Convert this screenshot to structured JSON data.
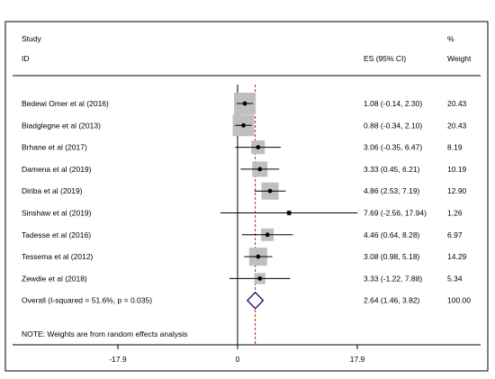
{
  "chart_data": {
    "type": "forest",
    "header": {
      "study_line1": "Study",
      "study_line2": "ID",
      "es_label": "ES (95% CI)",
      "weight_line1": "%",
      "weight_line2": "Weight"
    },
    "xlim": [
      -17.9,
      17.9
    ],
    "x_ticks": [
      "-17.9",
      "0",
      "17.9"
    ],
    "studies": [
      {
        "name": "Bedewi Omer et al (2016)",
        "es": 1.08,
        "lo": -0.14,
        "hi": 2.3,
        "ci_text": "1.08 (-0.14, 2.30)",
        "weight": 20.43,
        "weight_text": "20.43"
      },
      {
        "name": "Biadglegne et al (2013)",
        "es": 0.88,
        "lo": -0.34,
        "hi": 2.1,
        "ci_text": "0.88 (-0.34, 2.10)",
        "weight": 20.43,
        "weight_text": "20.43"
      },
      {
        "name": "Brhane et al (2017)",
        "es": 3.06,
        "lo": -0.35,
        "hi": 6.47,
        "ci_text": "3.06 (-0.35, 6.47)",
        "weight": 8.19,
        "weight_text": "8.19"
      },
      {
        "name": "Damena et al (2019)",
        "es": 3.33,
        "lo": 0.45,
        "hi": 6.21,
        "ci_text": "3.33 (0.45, 6.21)",
        "weight": 10.19,
        "weight_text": "10.19"
      },
      {
        "name": "Diriba et al (2019)",
        "es": 4.86,
        "lo": 2.53,
        "hi": 7.19,
        "ci_text": "4.86 (2.53, 7.19)",
        "weight": 12.9,
        "weight_text": "12.90"
      },
      {
        "name": "Sinshaw et al (2019)",
        "es": 7.69,
        "lo": -2.56,
        "hi": 17.94,
        "ci_text": "7.69 (-2.56, 17.94)",
        "weight": 1.26,
        "weight_text": "1.26"
      },
      {
        "name": "Tadesse et al (2016)",
        "es": 4.46,
        "lo": 0.64,
        "hi": 8.28,
        "ci_text": "4.46 (0.64, 8.28)",
        "weight": 6.97,
        "weight_text": "6.97"
      },
      {
        "name": "Tessema et al (2012)",
        "es": 3.08,
        "lo": 0.98,
        "hi": 5.18,
        "ci_text": "3.08 (0.98, 5.18)",
        "weight": 14.29,
        "weight_text": "14.29"
      },
      {
        "name": "Zewdie et al (2018)",
        "es": 3.33,
        "lo": -1.22,
        "hi": 7.88,
        "ci_text": "3.33 (-1.22, 7.88)",
        "weight": 5.34,
        "weight_text": "5.34"
      }
    ],
    "overall": {
      "label": "Overall  (I-squared = 51.6%, p = 0.035)",
      "es": 2.64,
      "lo": 1.46,
      "hi": 3.82,
      "ci_text": "2.64 (1.46, 3.82)",
      "weight_text": "100.00"
    },
    "note": "NOTE: Weights are from random effects analysis",
    "colors": {
      "box": "#bfbfbf",
      "diamond": "#1f1f7a",
      "overall_line": "#b22222",
      "frame": "#000000"
    }
  }
}
